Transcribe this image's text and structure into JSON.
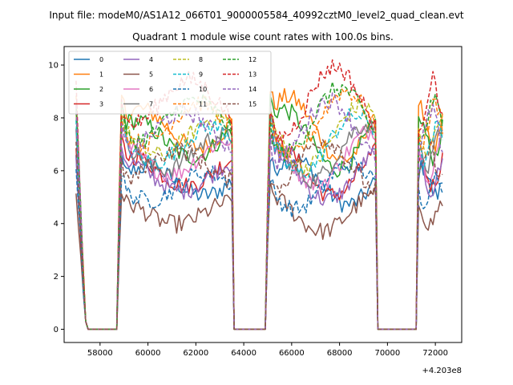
{
  "chart_data": {
    "type": "line",
    "suptitle": "Input file: modeM0/AS1A12_066T01_9000005584_40992cztM0_level2_quad_clean.evt",
    "title": "Quadrant 1 module wise count rates with 100.0s bins.",
    "xlabel": "",
    "ylabel": "",
    "x_offset_label": "+4.203e8",
    "xlim": [
      56500,
      73100
    ],
    "ylim": [
      -0.5,
      10.7
    ],
    "x_ticks": [
      58000,
      60000,
      62000,
      64000,
      66000,
      68000,
      70000,
      72000
    ],
    "x_tick_labels": [
      "58000",
      "60000",
      "62000",
      "64000",
      "66000",
      "68000",
      "70000",
      "72000"
    ],
    "y_ticks": [
      0,
      2,
      4,
      6,
      8,
      10
    ],
    "y_tick_labels": [
      "0",
      "2",
      "4",
      "6",
      "8",
      "10"
    ],
    "segments": [
      {
        "start": 57000,
        "end": 57400,
        "shape": "drop"
      },
      {
        "start": 57500,
        "end": 58700,
        "shape": "gap"
      },
      {
        "start": 58700,
        "end": 63500,
        "shape": "rise"
      },
      {
        "start": 63600,
        "end": 64900,
        "shape": "gap"
      },
      {
        "start": 64900,
        "end": 69500,
        "shape": "rise"
      },
      {
        "start": 69600,
        "end": 71200,
        "shape": "gap"
      },
      {
        "start": 71200,
        "end": 72300,
        "shape": "rise"
      }
    ],
    "series": [
      {
        "name": "0",
        "color": "#1f77b4",
        "dash": "solid",
        "base": 5.6
      },
      {
        "name": "1",
        "color": "#ff7f0e",
        "dash": "solid",
        "base": 7.6
      },
      {
        "name": "2",
        "color": "#2ca02c",
        "dash": "solid",
        "base": 7.2
      },
      {
        "name": "3",
        "color": "#d62728",
        "dash": "solid",
        "base": 6.0
      },
      {
        "name": "4",
        "color": "#9467bd",
        "dash": "solid",
        "base": 5.8
      },
      {
        "name": "5",
        "color": "#8c564b",
        "dash": "solid",
        "base": 4.4
      },
      {
        "name": "6",
        "color": "#e377c2",
        "dash": "solid",
        "base": 6.5
      },
      {
        "name": "7",
        "color": "#7f7f7f",
        "dash": "solid",
        "base": 6.7
      },
      {
        "name": "8",
        "color": "#bcbd22",
        "dash": "dashed",
        "base": 7.3
      },
      {
        "name": "9",
        "color": "#17becf",
        "dash": "dashed",
        "base": 7.0
      },
      {
        "name": "10",
        "color": "#1f77b4",
        "dash": "dashed",
        "base": 5.4
      },
      {
        "name": "11",
        "color": "#ff7f0e",
        "dash": "dashed",
        "base": 7.8
      },
      {
        "name": "12",
        "color": "#2ca02c",
        "dash": "dashed",
        "base": 7.9
      },
      {
        "name": "13",
        "color": "#d62728",
        "dash": "dashed",
        "base": 8.6
      },
      {
        "name": "14",
        "color": "#9467bd",
        "dash": "dashed",
        "base": 7.5
      },
      {
        "name": "15",
        "color": "#8c564b",
        "dash": "dashed",
        "base": 6.2
      }
    ],
    "legend": {
      "location": "upper-left",
      "columns": 4
    },
    "grid": false
  }
}
